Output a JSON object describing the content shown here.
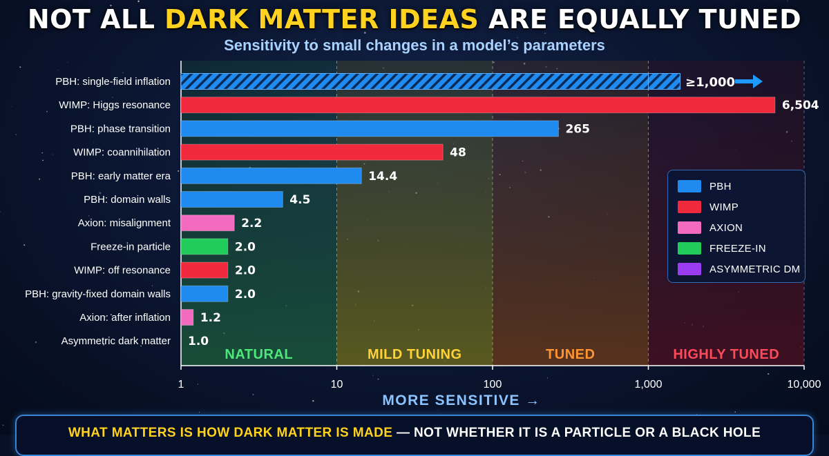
{
  "title": {
    "part1": "NOT ALL ",
    "highlight": "DARK MATTER IDEAS",
    "part2": " ARE EQUALLY TUNED"
  },
  "subtitle": "Sensitivity to small changes in a model’s parameters",
  "colors": {
    "PBH": "#1f8bf0",
    "WIMP": "#f02a3c",
    "AXION": "#f26bbf",
    "FREEZE-IN": "#22cc5a",
    "ASYMMETRIC DM": "#9b3cf0",
    "zone_natural": "#1c5a3c",
    "zone_mild": "#6d6a1c",
    "zone_tuned": "#6a3a1a",
    "zone_high": "#4a1020"
  },
  "legend": [
    {
      "label": "PBH",
      "color": "#1f8bf0"
    },
    {
      "label": "WIMP",
      "color": "#f02a3c"
    },
    {
      "label": "AXION",
      "color": "#f26bbf"
    },
    {
      "label": "FREEZE-IN",
      "color": "#22cc5a"
    },
    {
      "label": "ASYMMETRIC DM",
      "color": "#9b3cf0"
    }
  ],
  "chart_data": {
    "type": "bar",
    "orientation": "horizontal",
    "x_scale": "log",
    "xlim": [
      1,
      10000
    ],
    "xticks": [
      "1",
      "10",
      "100",
      "1,000",
      "10,000"
    ],
    "xlabel": "MORE SENSITIVE →",
    "zones": [
      {
        "label": "NATURAL",
        "from": 1,
        "to": 10,
        "color": "#4ee87a"
      },
      {
        "label": "MILD TUNING",
        "from": 10,
        "to": 100,
        "color": "#ffd23a"
      },
      {
        "label": "TUNED",
        "from": 100,
        "to": 1000,
        "color": "#ff9430"
      },
      {
        "label": "HIGHLY TUNED",
        "from": 1000,
        "to": 10000,
        "color": "#ff4a5a"
      }
    ],
    "bars": [
      {
        "category": "PBH: single-field inflation",
        "group": "PBH",
        "value": 1600,
        "label": "≥1,000",
        "lower_bound": true
      },
      {
        "category": "WIMP: Higgs resonance",
        "group": "WIMP",
        "value": 6504,
        "label": "6,504"
      },
      {
        "category": "PBH: phase transition",
        "group": "PBH",
        "value": 265,
        "label": "265"
      },
      {
        "category": "WIMP: coannihilation",
        "group": "WIMP",
        "value": 48,
        "label": "48"
      },
      {
        "category": "PBH: early matter era",
        "group": "PBH",
        "value": 14.4,
        "label": "14.4"
      },
      {
        "category": "PBH: domain walls",
        "group": "PBH",
        "value": 4.5,
        "label": "4.5"
      },
      {
        "category": "Axion: misalignment",
        "group": "AXION",
        "value": 2.2,
        "label": "2.2"
      },
      {
        "category": "Freeze-in particle",
        "group": "FREEZE-IN",
        "value": 2.0,
        "label": "2.0"
      },
      {
        "category": "WIMP: off resonance",
        "group": "WIMP",
        "value": 2.0,
        "label": "2.0"
      },
      {
        "category": "PBH: gravity-fixed domain walls",
        "group": "PBH",
        "value": 2.0,
        "label": "2.0"
      },
      {
        "category": "Axion: after inflation",
        "group": "AXION",
        "value": 1.2,
        "label": "1.2"
      },
      {
        "category": "Asymmetric dark matter",
        "group": "ASYMMETRIC DM",
        "value": 1.0,
        "label": "1.0"
      }
    ]
  },
  "footer": {
    "part1": "WHAT MATTERS IS HOW DARK MATTER IS MADE",
    "part2": " — NOT WHETHER IT IS A PARTICLE OR A BLACK HOLE"
  }
}
